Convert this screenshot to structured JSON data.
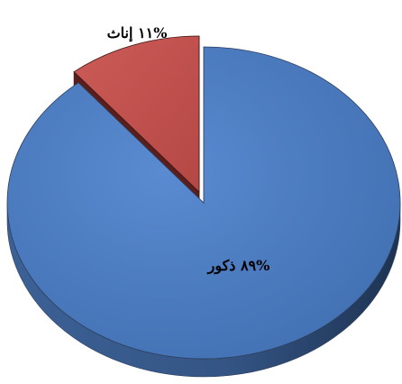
{
  "chart_data": {
    "type": "pie",
    "style": "3d-exploded",
    "title": "",
    "slices": [
      {
        "name": "ذكور",
        "value": 89,
        "label": "%٨٩  ذكور",
        "color": "#4f7ec0",
        "side_color": "#3f649a",
        "outline": "#2e3f5c"
      },
      {
        "name": "إناث",
        "value": 11,
        "label": "%١١  إناث",
        "color": "#c1504d",
        "side_color": "#5a1f1c",
        "outline": "#3a1412"
      }
    ],
    "legend": "none",
    "grid": false
  }
}
